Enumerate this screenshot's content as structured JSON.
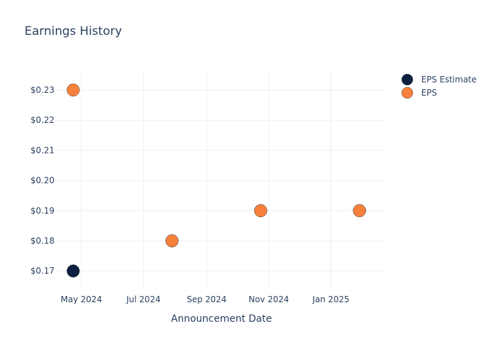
{
  "chart_data": {
    "type": "scatter",
    "title": "Earnings History",
    "xlabel": "Announcement Date",
    "ylabel": "",
    "x_ticks": [
      {
        "date": "2024-05-01",
        "label": "May 2024"
      },
      {
        "date": "2024-07-01",
        "label": "Jul 2024"
      },
      {
        "date": "2024-09-01",
        "label": "Sep 2024"
      },
      {
        "date": "2024-11-01",
        "label": "Nov 2024"
      },
      {
        "date": "2025-01-01",
        "label": "Jan 2025"
      }
    ],
    "xlim": [
      "2024-04-06",
      "2025-02-25"
    ],
    "y_ticks": [
      {
        "value": 0.17,
        "label": "$0.17"
      },
      {
        "value": 0.18,
        "label": "$0.18"
      },
      {
        "value": 0.19,
        "label": "$0.19"
      },
      {
        "value": 0.2,
        "label": "$0.20"
      },
      {
        "value": 0.21,
        "label": "$0.21"
      },
      {
        "value": 0.22,
        "label": "$0.22"
      },
      {
        "value": 0.23,
        "label": "$0.23"
      }
    ],
    "ylim": [
      0.1645,
      0.2367
    ],
    "grid": true,
    "legend": "top-right",
    "series": [
      {
        "name": "EPS Estimate",
        "color": "#0b1f3f",
        "points": [
          {
            "x": "2024-04-23",
            "y": 0.17
          },
          {
            "x": "2024-07-29",
            "y": 0.18
          },
          {
            "x": "2024-10-24",
            "y": 0.19
          },
          {
            "x": "2025-01-29",
            "y": 0.19
          }
        ]
      },
      {
        "name": "EPS",
        "color": "#f7803a",
        "points": [
          {
            "x": "2024-04-23",
            "y": 0.23
          },
          {
            "x": "2024-07-29",
            "y": 0.18
          },
          {
            "x": "2024-10-24",
            "y": 0.19
          },
          {
            "x": "2025-01-29",
            "y": 0.19
          }
        ]
      }
    ]
  }
}
